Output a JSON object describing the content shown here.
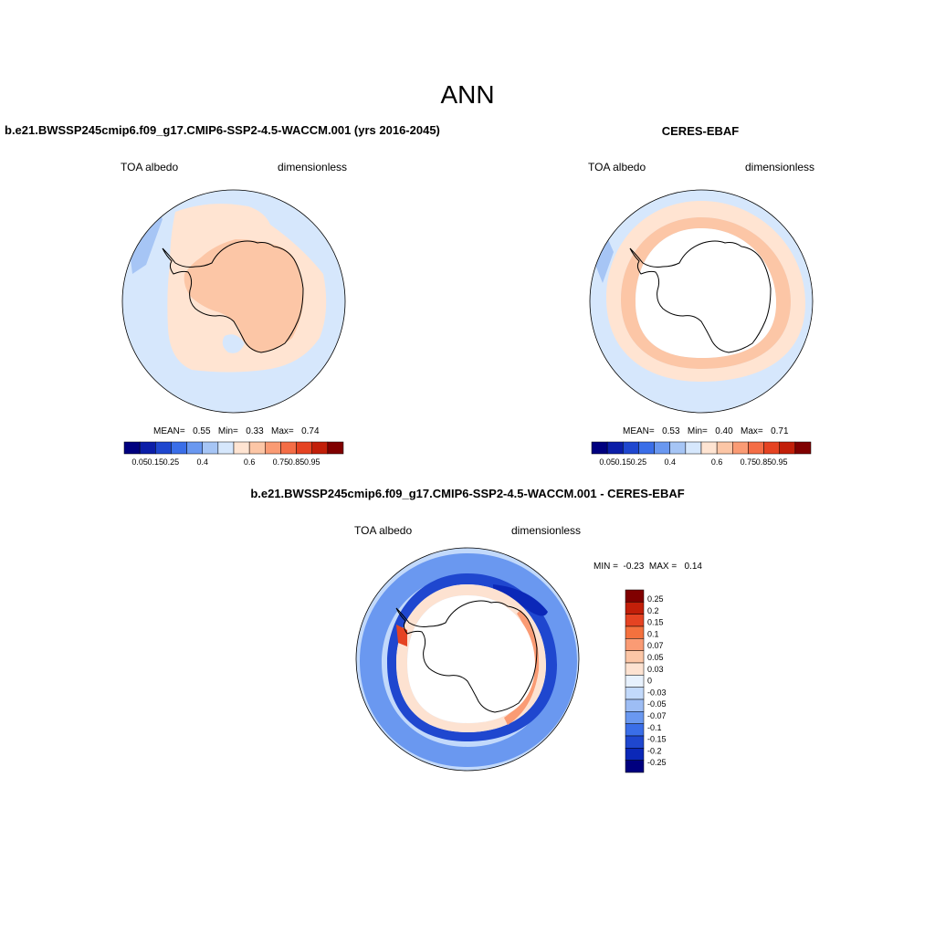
{
  "main_title": "ANN",
  "colors": {
    "full": [
      "#00007f",
      "#0b1ea8",
      "#1f47cf",
      "#3a6ee8",
      "#6a98f0",
      "#a6c5f5",
      "#d6e7fc",
      "#ffe4d2",
      "#fcc6a6",
      "#fa9b74",
      "#f46d46",
      "#e54322",
      "#c21f09",
      "#800000"
    ],
    "diff": [
      "#00007f",
      "#0b28b8",
      "#1f47cf",
      "#3a6ee8",
      "#6a98f0",
      "#9dbdf4",
      "#c2d9fb",
      "#e7f1fd",
      "#fde2d1",
      "#fcc6a6",
      "#fa9b74",
      "#f4713e",
      "#e54322",
      "#c21f09",
      "#800000"
    ],
    "land_white": "#ffffff",
    "ocean_light": "#d6e7fc"
  },
  "chart_data": [
    {
      "type": "heatmap",
      "projection": "south-polar-stereographic",
      "title": "b.e21.BWSSP245cmip6.f09_g17.CMIP6-SSP2-4.5-WACCM.001 (yrs 2016-2045)",
      "left_label": "TOA albedo",
      "right_label": "dimensionless",
      "stats": {
        "mean_label": "MEAN=",
        "mean": "0.55",
        "min_label": "Min=",
        "min": "0.33",
        "max_label": "Max=",
        "max": "0.74"
      },
      "colorbar_ticks": [
        "0.05",
        "0.15",
        "0.25",
        "0.4",
        "0.6",
        "0.75",
        "0.85",
        "0.95"
      ]
    },
    {
      "type": "heatmap",
      "projection": "south-polar-stereographic",
      "title": "CERES-EBAF",
      "left_label": "TOA albedo",
      "right_label": "dimensionless",
      "stats": {
        "mean_label": "MEAN=",
        "mean": "0.53",
        "min_label": "Min=",
        "min": "0.40",
        "max_label": "Max=",
        "max": "0.71"
      },
      "colorbar_ticks": [
        "0.05",
        "0.15",
        "0.25",
        "0.4",
        "0.6",
        "0.75",
        "0.85",
        "0.95"
      ]
    },
    {
      "type": "heatmap",
      "projection": "south-polar-stereographic",
      "title": "b.e21.BWSSP245cmip6.f09_g17.CMIP6-SSP2-4.5-WACCM.001 - CERES-EBAF",
      "left_label": "TOA albedo",
      "right_label": "dimensionless",
      "stats": {
        "min_label": "MIN =",
        "min": "-0.23",
        "max_label": "MAX =",
        "max": "0.14"
      },
      "colorbar_ticks": [
        "0.25",
        "0.2",
        "0.15",
        "0.1",
        "0.07",
        "0.05",
        "0.03",
        "0",
        "-0.03",
        "-0.05",
        "-0.07",
        "-0.1",
        "-0.15",
        "-0.2",
        "-0.25"
      ]
    }
  ]
}
